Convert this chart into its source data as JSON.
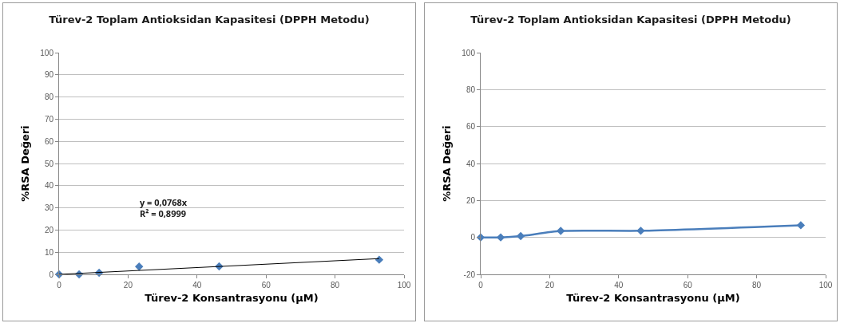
{
  "chart_data": [
    {
      "type": "scatter",
      "title": "Türev-2 Toplam Antioksidan Kapasitesi (DPPH Metodu)",
      "xlabel": "Türev-2 Konsantrasyonu (µM)",
      "ylabel": "%RSA Değeri",
      "x": [
        0,
        5.8,
        11.6,
        23.2,
        46.4,
        92.8
      ],
      "series": [
        {
          "color": "#4a7ebb",
          "values": [
            0,
            0,
            0.7,
            3.5,
            3.6,
            6.6
          ],
          "marker": "diamond"
        },
        {
          "type": "line",
          "color": "#000000",
          "x": [
            0,
            92.8
          ],
          "values": [
            0,
            7.1
          ],
          "marker": "none"
        }
      ],
      "annotations": [
        "y = 0,0768x\nR² = 0,8999"
      ],
      "xlim": [
        0,
        100
      ],
      "xticks": [
        0,
        20,
        40,
        60,
        80,
        100
      ],
      "ylim": [
        0,
        100
      ],
      "yticks": [
        0,
        10,
        20,
        30,
        40,
        50,
        60,
        70,
        80,
        90,
        100
      ],
      "grid": "y"
    },
    {
      "type": "line",
      "title": "Türev-2 Toplam Antioksidan Kapasitesi (DPPH Metodu)",
      "xlabel": "Türev-2 Konsantrasyonu (µM)",
      "ylabel": "%RSA Değeri",
      "x": [
        0,
        5.8,
        11.6,
        23.2,
        46.4,
        92.8
      ],
      "series": [
        {
          "color": "#4a7ebb",
          "values": [
            0,
            0,
            0.7,
            3.5,
            3.6,
            6.6
          ]
        }
      ],
      "marker": "diamond",
      "xlim": [
        0,
        100
      ],
      "xticks": [
        0,
        20,
        40,
        60,
        80,
        100
      ],
      "ylim": [
        -20,
        100
      ],
      "yticks": [
        -20,
        0,
        20,
        40,
        60,
        80,
        100
      ],
      "grid": "y"
    }
  ]
}
